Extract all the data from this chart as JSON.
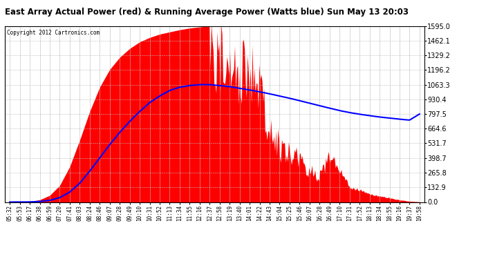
{
  "title": "East Array Actual Power (red) & Running Average Power (Watts blue) Sun May 13 20:03",
  "copyright": "Copyright 2012 Cartronics.com",
  "yticks": [
    0.0,
    132.9,
    265.8,
    398.7,
    531.7,
    664.6,
    797.5,
    930.4,
    1063.3,
    1196.2,
    1329.2,
    1462.1,
    1595.0
  ],
  "ylim": [
    0,
    1595.0
  ],
  "bg_color": "#ffffff",
  "fill_color": "#ff0000",
  "line_color": "#0000ff",
  "grid_major_color": "#bbbbbb",
  "grid_minor_color": "#dddddd",
  "times": [
    "05:32",
    "05:53",
    "06:17",
    "06:38",
    "06:59",
    "07:20",
    "07:41",
    "08:03",
    "08:24",
    "08:46",
    "09:07",
    "09:28",
    "09:49",
    "10:10",
    "10:31",
    "10:52",
    "11:13",
    "11:34",
    "11:55",
    "12:16",
    "12:37",
    "12:58",
    "13:19",
    "13:40",
    "14:01",
    "14:22",
    "14:43",
    "15:04",
    "15:25",
    "15:46",
    "16:07",
    "16:28",
    "16:49",
    "17:10",
    "17:31",
    "17:52",
    "18:13",
    "18:34",
    "18:55",
    "19:16",
    "19:37",
    "19:58"
  ],
  "actual_power": [
    0,
    0,
    5,
    20,
    60,
    150,
    320,
    560,
    820,
    1040,
    1200,
    1310,
    1390,
    1450,
    1490,
    1520,
    1540,
    1560,
    1575,
    1585,
    1595,
    1580,
    1520,
    1430,
    1050,
    900,
    780,
    650,
    520,
    400,
    290,
    210,
    150,
    100,
    70,
    50,
    35,
    25,
    15,
    10,
    5,
    2
  ],
  "actual_power_spiky": [
    0,
    0,
    5,
    20,
    60,
    150,
    320,
    560,
    820,
    1040,
    1200,
    1310,
    1390,
    1450,
    1490,
    1520,
    1540,
    1560,
    1575,
    1585,
    1595,
    1570,
    1590,
    1400,
    1500,
    1200,
    800,
    600,
    550,
    480,
    350,
    280,
    480,
    320,
    150,
    120,
    80,
    60,
    40,
    20,
    8,
    2
  ],
  "running_avg": [
    0,
    0,
    1,
    5,
    15,
    40,
    90,
    170,
    280,
    400,
    520,
    630,
    730,
    820,
    900,
    960,
    1010,
    1040,
    1055,
    1063,
    1063,
    1055,
    1045,
    1030,
    1015,
    998,
    980,
    960,
    940,
    918,
    895,
    872,
    850,
    828,
    810,
    795,
    782,
    770,
    760,
    750,
    742,
    797
  ]
}
